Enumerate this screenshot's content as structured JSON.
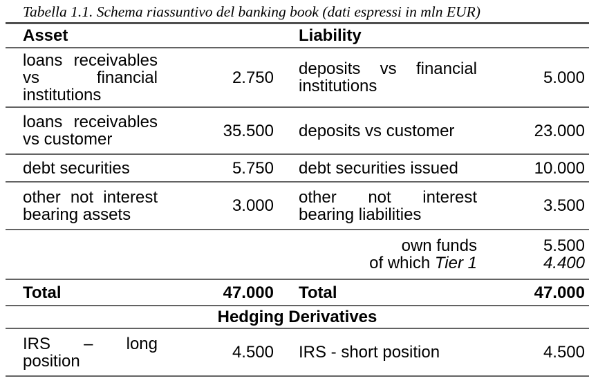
{
  "table": {
    "title": "Tabella 1.1. Schema riassuntivo del banking book (dati espressi in mln EUR)",
    "col_headers": {
      "asset": "Asset",
      "liability": "Liability"
    },
    "rows": [
      {
        "asset_lines": [
          "loans receivables",
          "vs financial",
          "institutions"
        ],
        "asset_value": "2.750",
        "liability_lines": [
          "deposits vs financial",
          "institutions"
        ],
        "liability_value": "5.000"
      },
      {
        "asset_lines": [
          "loans receivables",
          "vs customer"
        ],
        "asset_value": "35.500",
        "liability_lines": [
          "deposits vs customer"
        ],
        "liability_value": "23.000"
      },
      {
        "asset_lines": [
          "debt securities"
        ],
        "asset_value": "5.750",
        "liability_lines": [
          "debt securities issued"
        ],
        "liability_value": "10.000"
      },
      {
        "asset_lines": [
          "other not interest",
          "bearing assets"
        ],
        "asset_value": "3.000",
        "liability_lines": [
          "other not interest",
          "bearing liabilities"
        ],
        "liability_value": "3.500"
      }
    ],
    "own_funds": {
      "label": "own funds",
      "value": "5.500",
      "of_which_prefix": "of which",
      "of_which_italic": "Tier 1",
      "of_which_value": "4.400"
    },
    "total": {
      "asset_label": "Total",
      "asset_value": "47.000",
      "liability_label": "Total",
      "liability_value": "47.000"
    },
    "section_header": "Hedging Derivatives",
    "hedging_row": {
      "asset_lines": [
        "IRS – long",
        "position"
      ],
      "asset_value": "4.500",
      "liability_lines": [
        "IRS - short position"
      ],
      "liability_value": "4.500"
    }
  }
}
